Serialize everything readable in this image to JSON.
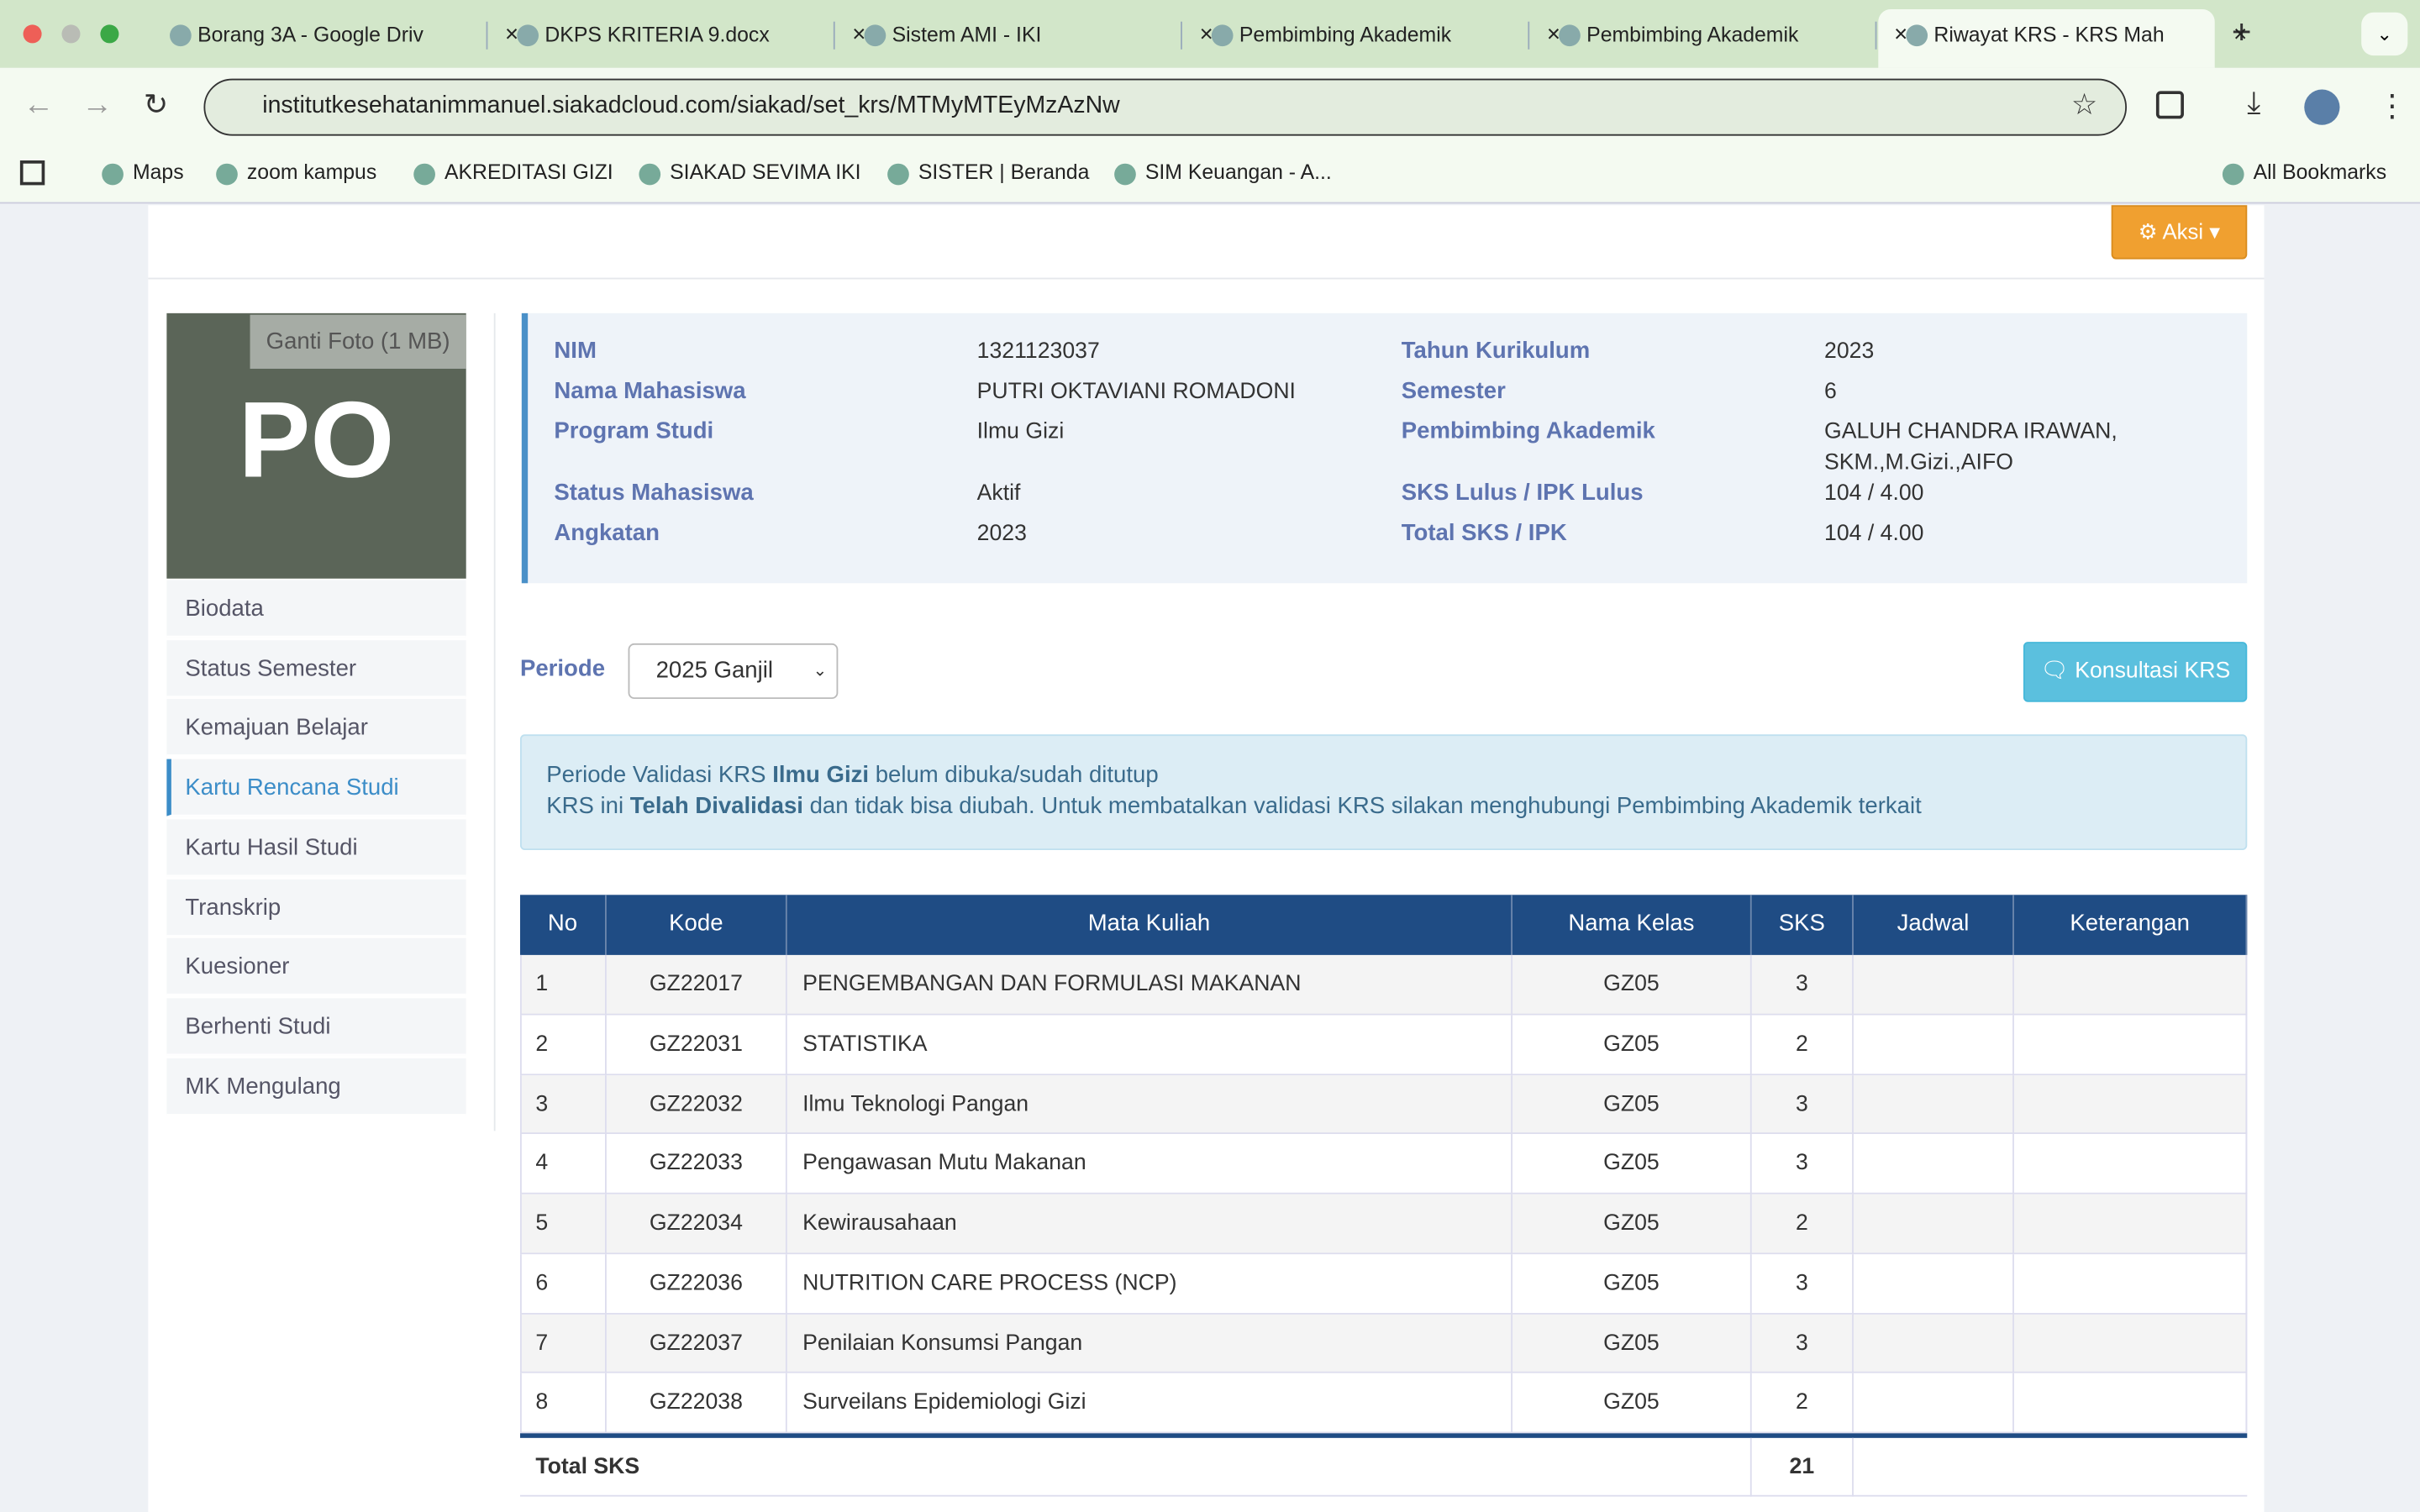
{
  "tabs": [
    "Borang 3A - Google Driv",
    "DKPS KRITERIA 9.docx",
    "Sistem AMI - IKI",
    "Pembimbing Akademik",
    "Pembimbing Akademik",
    "Riwayat KRS - KRS Mah"
  ],
  "url": "institutkesehatanimmanuel.siakadcloud.com/siakad/set_krs/MTMyMTEyMzAzNw",
  "bookmarks": [
    "Maps",
    "zoom kampus",
    "AKREDITASI GIZI",
    "SIAKAD SEVIMA IKI",
    "SISTER | Beranda",
    "SIM Keuangan - A..."
  ],
  "all_bookmarks": "All Bookmarks",
  "action_button": "Aksi",
  "profile": {
    "initials": "PO",
    "change_photo": "Ganti Foto (1 MB)",
    "menu": [
      "Biodata",
      "Status Semester",
      "Kemajuan Belajar",
      "Kartu Rencana Studi",
      "Kartu Hasil Studi",
      "Transkrip",
      "Kuesioner",
      "Berhenti Studi",
      "MK Mengulang"
    ]
  },
  "info": {
    "left": [
      [
        "NIM",
        "1321123037"
      ],
      [
        "Nama Mahasiswa",
        "PUTRI OKTAVIANI ROMADONI"
      ],
      [
        "Program Studi",
        "Ilmu Gizi"
      ],
      [
        "Status Mahasiswa",
        "Aktif"
      ],
      [
        "Angkatan",
        "2023"
      ]
    ],
    "right": [
      [
        "Tahun Kurikulum",
        "2023"
      ],
      [
        "Semester",
        "6"
      ],
      [
        "Pembimbing Akademik",
        "GALUH CHANDRA IRAWAN, SKM.,M.Gizi.,AIFO"
      ],
      [
        "SKS Lulus / IPK Lulus",
        "104 / 4.00"
      ],
      [
        "Total SKS / IPK",
        "104 / 4.00"
      ]
    ]
  },
  "periode": {
    "label": "Periode",
    "selected": "2025 Ganjil",
    "consult_button": "Konsultasi KRS"
  },
  "alert": {
    "line1": [
      "Periode Validasi KRS ",
      "Ilmu Gizi",
      " belum dibuka/sudah ditutup"
    ],
    "line2": [
      "KRS ini ",
      "Telah Divalidasi",
      " dan tidak bisa diubah. Untuk membatalkan validasi KRS silakan menghubungi Pembimbing Akademik terkait"
    ]
  },
  "table": {
    "headers": [
      "No",
      "Kode",
      "Mata Kuliah",
      "Nama Kelas",
      "SKS",
      "Jadwal",
      "Keterangan"
    ],
    "rows": [
      [
        "1",
        "GZ22017",
        "PENGEMBANGAN DAN FORMULASI MAKANAN",
        "GZ05",
        "3"
      ],
      [
        "2",
        "GZ22031",
        "STATISTIKA",
        "GZ05",
        "2"
      ],
      [
        "3",
        "GZ22032",
        "Ilmu Teknologi Pangan",
        "GZ05",
        "3"
      ],
      [
        "4",
        "GZ22033",
        "Pengawasan Mutu Makanan",
        "GZ05",
        "3"
      ],
      [
        "5",
        "GZ22034",
        "Kewirausahaan",
        "GZ05",
        "2"
      ],
      [
        "6",
        "GZ22036",
        "NUTRITION CARE PROCESS (NCP)",
        "GZ05",
        "3"
      ],
      [
        "7",
        "GZ22037",
        "Penilaian Konsumsi Pangan",
        "GZ05",
        "3"
      ],
      [
        "8",
        "GZ22038",
        "Surveilans Epidemiologi Gizi",
        "GZ05",
        "2"
      ]
    ],
    "total_label": "Total SKS",
    "total": "21"
  }
}
